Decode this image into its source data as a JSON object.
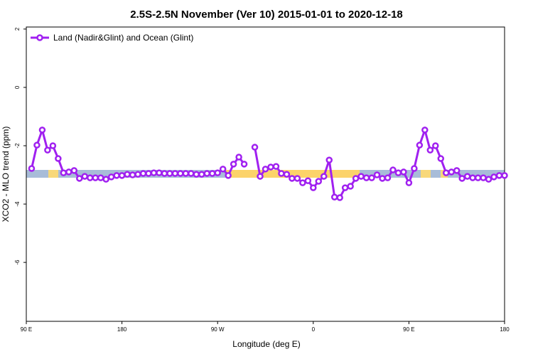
{
  "chart_data": {
    "type": "line",
    "title": "2.5S-2.5N November (Ver 10)   2015-01-01 to 2020-12-18",
    "x_label": "Longitude (deg E)",
    "y_label": "XCO2 - MLO trend (ppm)",
    "legend_position": "top-left",
    "xlim": [
      90,
      540
    ],
    "ylim": [
      -8.02,
      2.07
    ],
    "xticks": [
      {
        "value": 90,
        "label": "90 E"
      },
      180,
      {
        "value": 270,
        "label": "90 W"
      },
      {
        "value": 360,
        "label": "0"
      },
      {
        "value": 450,
        "label": "90 E"
      },
      {
        "value": 540,
        "label": "180"
      }
    ],
    "yticks": [
      2,
      0,
      -2,
      -4,
      -6
    ],
    "x": [
      95,
      100,
      105,
      110,
      115,
      120,
      125,
      130,
      135,
      140,
      145,
      150,
      155,
      160,
      165,
      170,
      175,
      180,
      185,
      190,
      195,
      200,
      205,
      210,
      215,
      220,
      225,
      230,
      235,
      240,
      245,
      250,
      255,
      260,
      265,
      270,
      275,
      280,
      285,
      290,
      295,
      300,
      305,
      310,
      315,
      320,
      325,
      330,
      335,
      340,
      345,
      350,
      355,
      360,
      365,
      370,
      375,
      380,
      385,
      390,
      395,
      400,
      405,
      410,
      415,
      420,
      425,
      430,
      435,
      440,
      445,
      450,
      455,
      460,
      465,
      470,
      475,
      480,
      485,
      490,
      495,
      500,
      505,
      510,
      515,
      520,
      525,
      530,
      535,
      540
    ],
    "series": [
      {
        "name": "Land (Nadir&Glint) and Ocean (Glint)",
        "color": "#a020f0",
        "values": [
          -2.78,
          -1.98,
          -1.46,
          -2.15,
          -2.0,
          -2.44,
          -2.93,
          -2.9,
          -2.85,
          -3.12,
          -3.05,
          -3.1,
          -3.1,
          -3.1,
          -3.15,
          -3.07,
          -3.02,
          -3.02,
          -2.98,
          -3.0,
          -2.98,
          -2.95,
          -2.95,
          -2.93,
          -2.93,
          -2.95,
          -2.95,
          -2.95,
          -2.95,
          -2.95,
          -2.95,
          -2.98,
          -2.98,
          -2.95,
          -2.95,
          -2.93,
          -2.8,
          -3.02,
          -2.63,
          -2.39,
          -2.63,
          null,
          -2.05,
          -3.05,
          -2.8,
          -2.73,
          -2.71,
          -2.95,
          -2.98,
          -3.12,
          -3.12,
          -3.27,
          -3.2,
          -3.44,
          -3.22,
          -3.05,
          -2.49,
          -3.76,
          -3.78,
          -3.44,
          -3.39,
          -3.12,
          -3.05,
          -3.1,
          -3.1,
          -3.0,
          -3.12,
          -3.1,
          -2.83,
          -2.93,
          -2.9,
          -3.27,
          -2.78,
          -1.98,
          -1.46,
          -2.15,
          -2.0,
          -2.44,
          -2.93,
          -2.9,
          -2.85,
          -3.12,
          -3.05,
          -3.1,
          -3.1,
          -3.1,
          -3.15,
          -3.07,
          -3.02,
          -3.02
        ]
      }
    ]
  }
}
